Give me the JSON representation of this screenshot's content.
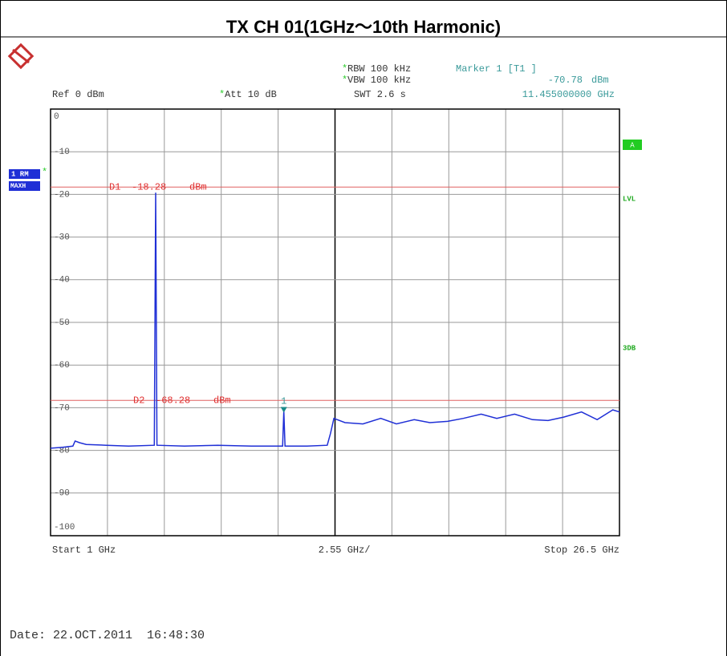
{
  "chart_data": {
    "type": "line",
    "title": "TX CH 01(1GHz～10th Harmonic)",
    "flag": "*",
    "ref": "Ref  0 dBm",
    "att": "Att  10 dB",
    "rbw": "RBW 100 kHz",
    "vbw": "VBW 100 kHz",
    "swt": "SWT 2.6 s",
    "marker": {
      "label": "Marker 1 [T1 ]",
      "name": "1",
      "x": 11.455,
      "x_label": "11.455000000 GHz",
      "value": -70.78,
      "unit": "dBm"
    },
    "side_labels": {
      "trace": "1 RM",
      "mode": "MAXH",
      "a": "A",
      "lvl": "LVL",
      "db3": "3DB"
    },
    "display_lines": [
      {
        "name": "D1",
        "value": -18.28,
        "unit": "dBm"
      },
      {
        "name": "D2",
        "value": -68.28,
        "unit": "dBm"
      }
    ],
    "x_labels": [
      "Start 1 GHz",
      "2.55 GHz/",
      "Stop 26.5 GHz"
    ],
    "date": "Date: 22.OCT.2011  16:48:30",
    "color": "#1f2fd6",
    "line_color": "#e06060",
    "xlim": [
      1,
      26.5
    ],
    "ylim": [
      -100,
      0
    ],
    "yticks": [
      0,
      -10,
      -20,
      -30,
      -40,
      -50,
      -60,
      -70,
      -80,
      -90,
      -100
    ],
    "grid": true,
    "x": [
      1.0,
      1.5,
      2.0,
      2.1,
      2.3,
      2.6,
      3.5,
      4.5,
      5.65,
      5.71,
      5.77,
      7,
      8.5,
      10,
      11.4,
      11.455,
      11.51,
      12.5,
      13.4,
      13.55,
      13.7,
      14.2,
      15,
      15.8,
      16.5,
      17.3,
      18,
      18.8,
      19.5,
      20.3,
      21,
      21.8,
      22.6,
      23.3,
      24,
      24.8,
      25.5,
      26.2,
      26.5
    ],
    "values": [
      -79.5,
      -79.3,
      -79.0,
      -77.8,
      -78.2,
      -78.6,
      -78.8,
      -79.0,
      -78.8,
      -19.6,
      -78.8,
      -79.0,
      -78.8,
      -79.0,
      -79.0,
      -70.78,
      -79.0,
      -79.0,
      -78.8,
      -76,
      -72.5,
      -73.5,
      -73.8,
      -72.5,
      -73.8,
      -72.8,
      -73.5,
      -73.2,
      -72.5,
      -71.5,
      -72.5,
      -71.5,
      -72.8,
      -73,
      -72.2,
      -71,
      -72.8,
      -70.5,
      -71
    ]
  }
}
